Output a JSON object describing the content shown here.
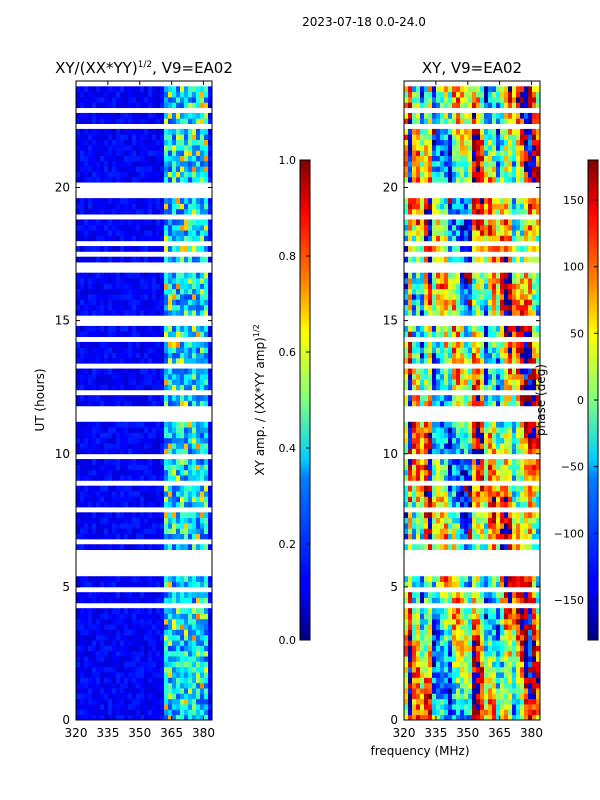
{
  "suptitle": "2023-07-18 0.0-24.0",
  "shared": {
    "xlabel": "frequency (MHz)",
    "ylabel": "UT (hours)",
    "xticks": [
      320,
      335,
      350,
      365,
      380
    ],
    "xlim": [
      320,
      384
    ],
    "yticks": [
      0,
      5,
      10,
      15,
      20
    ],
    "ylim": [
      0,
      24
    ]
  },
  "chart_data": [
    {
      "type": "heatmap",
      "title": "XY/(XX*YY)",
      "title_exponent": "1/2",
      "title_suffix": ", V9=EA02",
      "colorbar": {
        "label": "XY amp. / (XX*YY amp)",
        "label_exponent": "1/2",
        "range": [
          0.0,
          1.0
        ],
        "ticks": [
          0.0,
          0.2,
          0.4,
          0.6,
          0.8,
          1.0
        ],
        "tick_labels": [
          "0.0",
          "0.2",
          "0.4",
          "0.6",
          "0.8",
          "1.0"
        ],
        "colormap": "jet"
      },
      "description_values": {
        "background_level": 0.08,
        "rfi_band_mhz": [
          362,
          383
        ],
        "rfi_level_max": 0.75
      }
    },
    {
      "type": "heatmap",
      "title": "XY, V9=EA02",
      "colorbar": {
        "label": "phase (deg)",
        "range": [
          -180,
          180
        ],
        "ticks": [
          -150,
          -100,
          -50,
          0,
          50,
          100,
          150
        ],
        "tick_labels": [
          "−150",
          "−100",
          "−50",
          "0",
          "50",
          "100",
          "150"
        ],
        "colormap": "jet"
      }
    }
  ]
}
